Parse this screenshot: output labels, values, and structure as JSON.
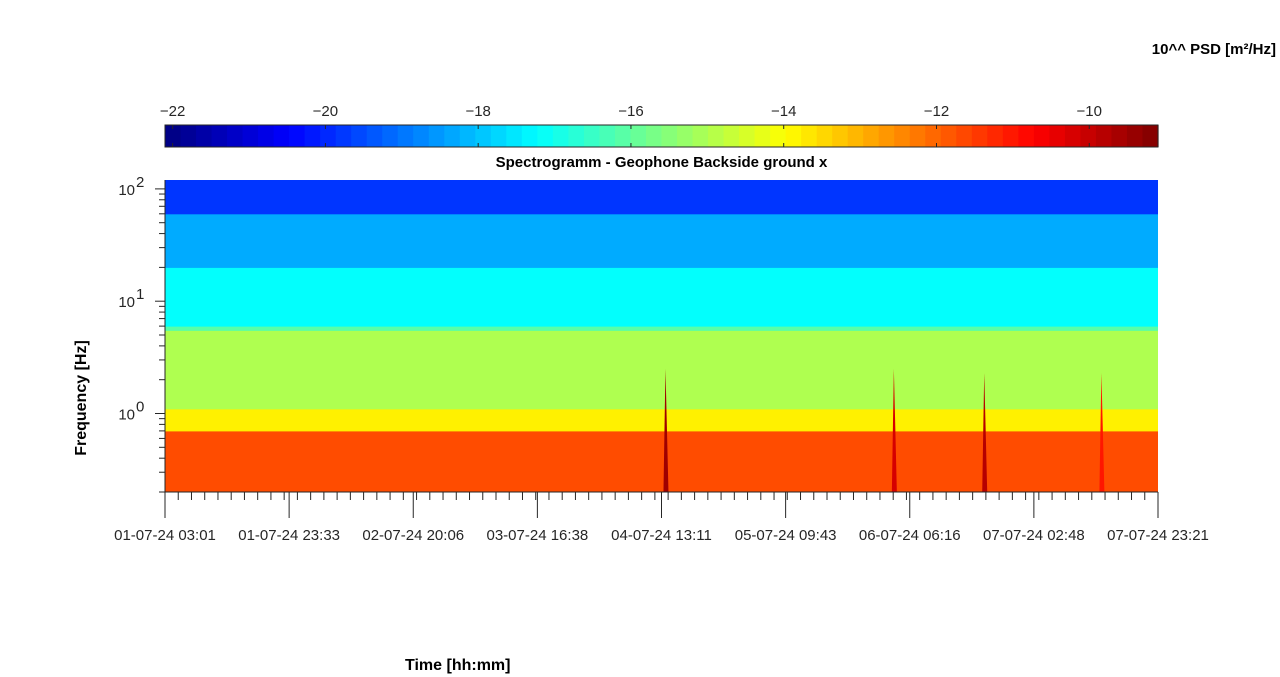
{
  "chart_data": {
    "type": "heatmap",
    "title": "Spectrogramm - Geophone Backside ground x",
    "xlabel": "Time [hh:mm]",
    "ylabel": "Frequency [Hz]",
    "colorbar": {
      "title": "10^^ PSD [m²/Hz]",
      "ticks": [
        -22,
        -20,
        -18,
        -16,
        -14,
        -12,
        -10
      ],
      "range": [
        -22.1,
        -9.1
      ],
      "colormap": "jet",
      "location": "top"
    },
    "x_tick_labels": [
      "01-07-24  03:01",
      "01-07-24  23:33",
      "02-07-24  20:06",
      "03-07-24  16:38",
      "04-07-24  13:11",
      "05-07-24  09:43",
      "06-07-24  06:16",
      "07-07-24  02:48",
      "07-07-24  23:21"
    ],
    "y_scale": "log",
    "y_ticks": [
      1,
      10,
      100
    ],
    "y_tick_labels": [
      "10",
      "10",
      "10"
    ],
    "y_tick_exponents": [
      "0",
      "1",
      "2"
    ],
    "ylim": [
      0.2,
      120
    ],
    "bands": [
      {
        "f_min": 0.2,
        "f_max": 0.7,
        "log10_psd": -11.7
      },
      {
        "f_min": 0.7,
        "f_max": 1.1,
        "log10_psd": -13.8
      },
      {
        "f_min": 1.1,
        "f_max": 5.5,
        "log10_psd": -15.0
      },
      {
        "f_min": 5.5,
        "f_max": 6.0,
        "log10_psd": -16.1
      },
      {
        "f_min": 6.0,
        "f_max": 20,
        "log10_psd": -17.2
      },
      {
        "f_min": 20,
        "f_max": 60,
        "log10_psd": -18.3
      },
      {
        "f_min": 60,
        "f_max": 120,
        "log10_psd": -19.8
      }
    ],
    "transients": [
      {
        "time_fraction": 0.505,
        "f_max": 2.5,
        "log10_psd": -9.5
      },
      {
        "time_fraction": 0.735,
        "f_max": 2.5,
        "log10_psd": -10.2
      },
      {
        "time_fraction": 0.826,
        "f_max": 2.3,
        "log10_psd": -9.8
      },
      {
        "time_fraction": 0.944,
        "f_max": 2.3,
        "log10_psd": -11.0
      }
    ],
    "grid": false,
    "legend": "none"
  }
}
